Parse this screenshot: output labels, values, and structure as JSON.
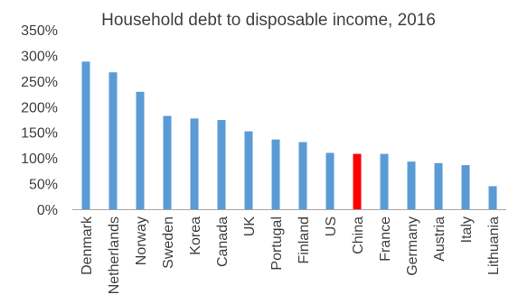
{
  "chart_data": {
    "type": "bar",
    "title": "Household debt to disposable income, 2016",
    "xlabel": "",
    "ylabel": "",
    "y_unit": "%",
    "ylim": [
      0,
      350
    ],
    "y_ticks": [
      0,
      50,
      100,
      150,
      200,
      250,
      300,
      350
    ],
    "y_tick_labels": [
      "0%",
      "50%",
      "100%",
      "150%",
      "200%",
      "250%",
      "300%",
      "350%"
    ],
    "grid": false,
    "legend": "none",
    "categories": [
      "Denmark",
      "Netherlands",
      "Norway",
      "Sweden",
      "Korea",
      "Canada",
      "UK",
      "Portugal",
      "Finland",
      "US",
      "China",
      "France",
      "Germany",
      "Austria",
      "Italy",
      "Lithuania"
    ],
    "values": [
      288,
      267,
      229,
      182,
      177,
      174,
      152,
      136,
      131,
      110,
      108,
      108,
      93,
      90,
      86,
      45
    ],
    "bar_color": "#5b9bd5",
    "highlight_category": "China",
    "highlight_color": "#ff0000",
    "axis_color": "#a6a6a6",
    "text_color": "#404040"
  }
}
